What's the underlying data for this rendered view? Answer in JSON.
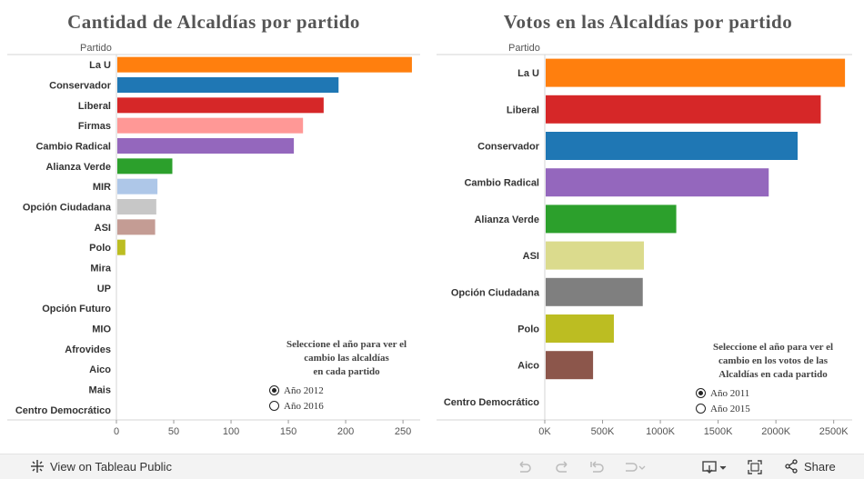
{
  "chart_data": [
    {
      "type": "bar",
      "orientation": "horizontal",
      "title": "Cantidad de Alcaldías por partido",
      "ylabel": "Partido",
      "categories": [
        "La U",
        "Conservador",
        "Liberal",
        "Firmas",
        "Cambio Radical",
        "Alianza Verde",
        "MIR",
        "Opción Ciudadana",
        "ASI",
        "Polo",
        "Mira",
        "UP",
        "Opción Futuro",
        "MIO",
        "Afrovides",
        "Aico",
        "Mais",
        "Centro Democrático"
      ],
      "values": [
        257,
        193,
        180,
        162,
        154,
        48,
        35,
        34,
        33,
        7,
        0,
        0,
        0,
        0,
        0,
        0,
        0,
        0
      ],
      "colors": [
        "#ff7f0e",
        "#1f77b4",
        "#d62728",
        "#ff9896",
        "#9467bd",
        "#2ca02c",
        "#aec7e8",
        "#c7c7c7",
        "#c49c94",
        "#bcbd22",
        "#cccccc",
        "#cccccc",
        "#cccccc",
        "#cccccc",
        "#cccccc",
        "#cccccc",
        "#cccccc",
        "#cccccc"
      ],
      "xlim": [
        0,
        265
      ],
      "xticks": [
        0,
        50,
        100,
        150,
        200,
        250
      ],
      "xtick_labels": [
        "0",
        "50",
        "100",
        "150",
        "200",
        "250"
      ],
      "selector": {
        "title": "Seleccione el año para ver el\ncambio las alcaldías\nen cada partido",
        "options": [
          {
            "label": "Año 2012",
            "checked": true
          },
          {
            "label": "Año 2016",
            "checked": false
          }
        ]
      }
    },
    {
      "type": "bar",
      "orientation": "horizontal",
      "title": "Votos en las Alcaldías por partido",
      "ylabel": "Partido",
      "categories": [
        "La U",
        "Liberal",
        "Conservador",
        "Cambio Radical",
        "Alianza Verde",
        "ASI",
        "Opción Ciudadana",
        "Polo",
        "Aico",
        "Centro Democrático"
      ],
      "values": [
        2590000,
        2380000,
        2180000,
        1930000,
        1130000,
        850000,
        840000,
        590000,
        410000,
        0
      ],
      "colors": [
        "#ff7f0e",
        "#d62728",
        "#1f77b4",
        "#9467bd",
        "#2ca02c",
        "#dbdb8d",
        "#7f7f7f",
        "#bcbd22",
        "#8c564b",
        "#cccccc"
      ],
      "xlim": [
        0,
        2660000
      ],
      "xticks": [
        0,
        500000,
        1000000,
        1500000,
        2000000,
        2500000
      ],
      "xtick_labels": [
        "0K",
        "500K",
        "1000K",
        "1500K",
        "2000K",
        "2500K"
      ],
      "selector": {
        "title": "Seleccione el año para ver el\ncambio en los votos de las\nAlcaldías en cada partido",
        "options": [
          {
            "label": "Año 2011",
            "checked": true
          },
          {
            "label": "Año 2015",
            "checked": false
          }
        ]
      }
    }
  ],
  "footer": {
    "view_label": "View on Tableau Public",
    "share_label": "Share"
  }
}
